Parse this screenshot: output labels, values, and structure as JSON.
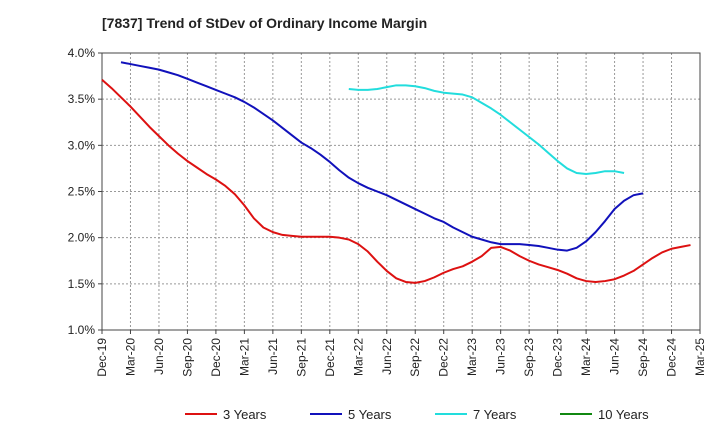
{
  "chart_data": {
    "type": "line",
    "title": "[7837]  Trend of StDev of Ordinary Income Margin",
    "xlabel": "",
    "ylabel": "",
    "ylim": [
      1.0,
      4.0
    ],
    "yticks": [
      "1.0%",
      "1.5%",
      "2.0%",
      "2.5%",
      "3.0%",
      "3.5%",
      "4.0%"
    ],
    "ytick_values": [
      1.0,
      1.5,
      2.0,
      2.5,
      3.0,
      3.5,
      4.0
    ],
    "xticks": [
      "Dec-19",
      "Mar-20",
      "Jun-20",
      "Sep-20",
      "Dec-20",
      "Mar-21",
      "Jun-21",
      "Sep-21",
      "Dec-21",
      "Mar-22",
      "Jun-22",
      "Sep-22",
      "Dec-22",
      "Mar-23",
      "Jun-23",
      "Sep-23",
      "Dec-23",
      "Mar-24",
      "Jun-24",
      "Sep-24",
      "Dec-24",
      "Mar-25"
    ],
    "grid": true,
    "legend_position": "bottom",
    "series": [
      {
        "name": "3 Years",
        "color": "#dd1111",
        "start_index": 0,
        "values": [
          3.71,
          3.62,
          3.52,
          3.42,
          3.31,
          3.2,
          3.1,
          3.0,
          2.91,
          2.83,
          2.76,
          2.69,
          2.63,
          2.56,
          2.47,
          2.35,
          2.21,
          2.11,
          2.06,
          2.03,
          2.02,
          2.01,
          2.01,
          2.01,
          2.01,
          2.0,
          1.98,
          1.93,
          1.85,
          1.74,
          1.64,
          1.56,
          1.52,
          1.51,
          1.53,
          1.57,
          1.62,
          1.66,
          1.69,
          1.74,
          1.8,
          1.89,
          1.9,
          1.86,
          1.8,
          1.75,
          1.71,
          1.68,
          1.65,
          1.61,
          1.56,
          1.53,
          1.52,
          1.53,
          1.55,
          1.59,
          1.64,
          1.71,
          1.78,
          1.84,
          1.88,
          1.9,
          1.92
        ]
      },
      {
        "name": "5 Years",
        "color": "#1111bb",
        "start_index": 2,
        "values": [
          3.9,
          3.88,
          3.86,
          3.84,
          3.82,
          3.79,
          3.76,
          3.72,
          3.68,
          3.64,
          3.6,
          3.56,
          3.52,
          3.47,
          3.41,
          3.34,
          3.27,
          3.19,
          3.11,
          3.03,
          2.97,
          2.9,
          2.82,
          2.73,
          2.65,
          2.59,
          2.54,
          2.5,
          2.46,
          2.41,
          2.36,
          2.31,
          2.26,
          2.21,
          2.17,
          2.11,
          2.06,
          2.01,
          1.98,
          1.95,
          1.93,
          1.93,
          1.93,
          1.92,
          1.91,
          1.89,
          1.87,
          1.86,
          1.89,
          1.96,
          2.06,
          2.18,
          2.31,
          2.4,
          2.46,
          2.48
        ]
      },
      {
        "name": "7 Years",
        "color": "#22dddd",
        "start_index": 26,
        "values": [
          3.61,
          3.6,
          3.6,
          3.61,
          3.63,
          3.65,
          3.65,
          3.64,
          3.62,
          3.59,
          3.57,
          3.56,
          3.55,
          3.52,
          3.46,
          3.4,
          3.33,
          3.25,
          3.17,
          3.09,
          3.01,
          2.92,
          2.83,
          2.75,
          2.7,
          2.69,
          2.7,
          2.72,
          2.72,
          2.7
        ]
      },
      {
        "name": "10 Years",
        "color": "#118811",
        "start_index": 0,
        "values": []
      }
    ]
  }
}
